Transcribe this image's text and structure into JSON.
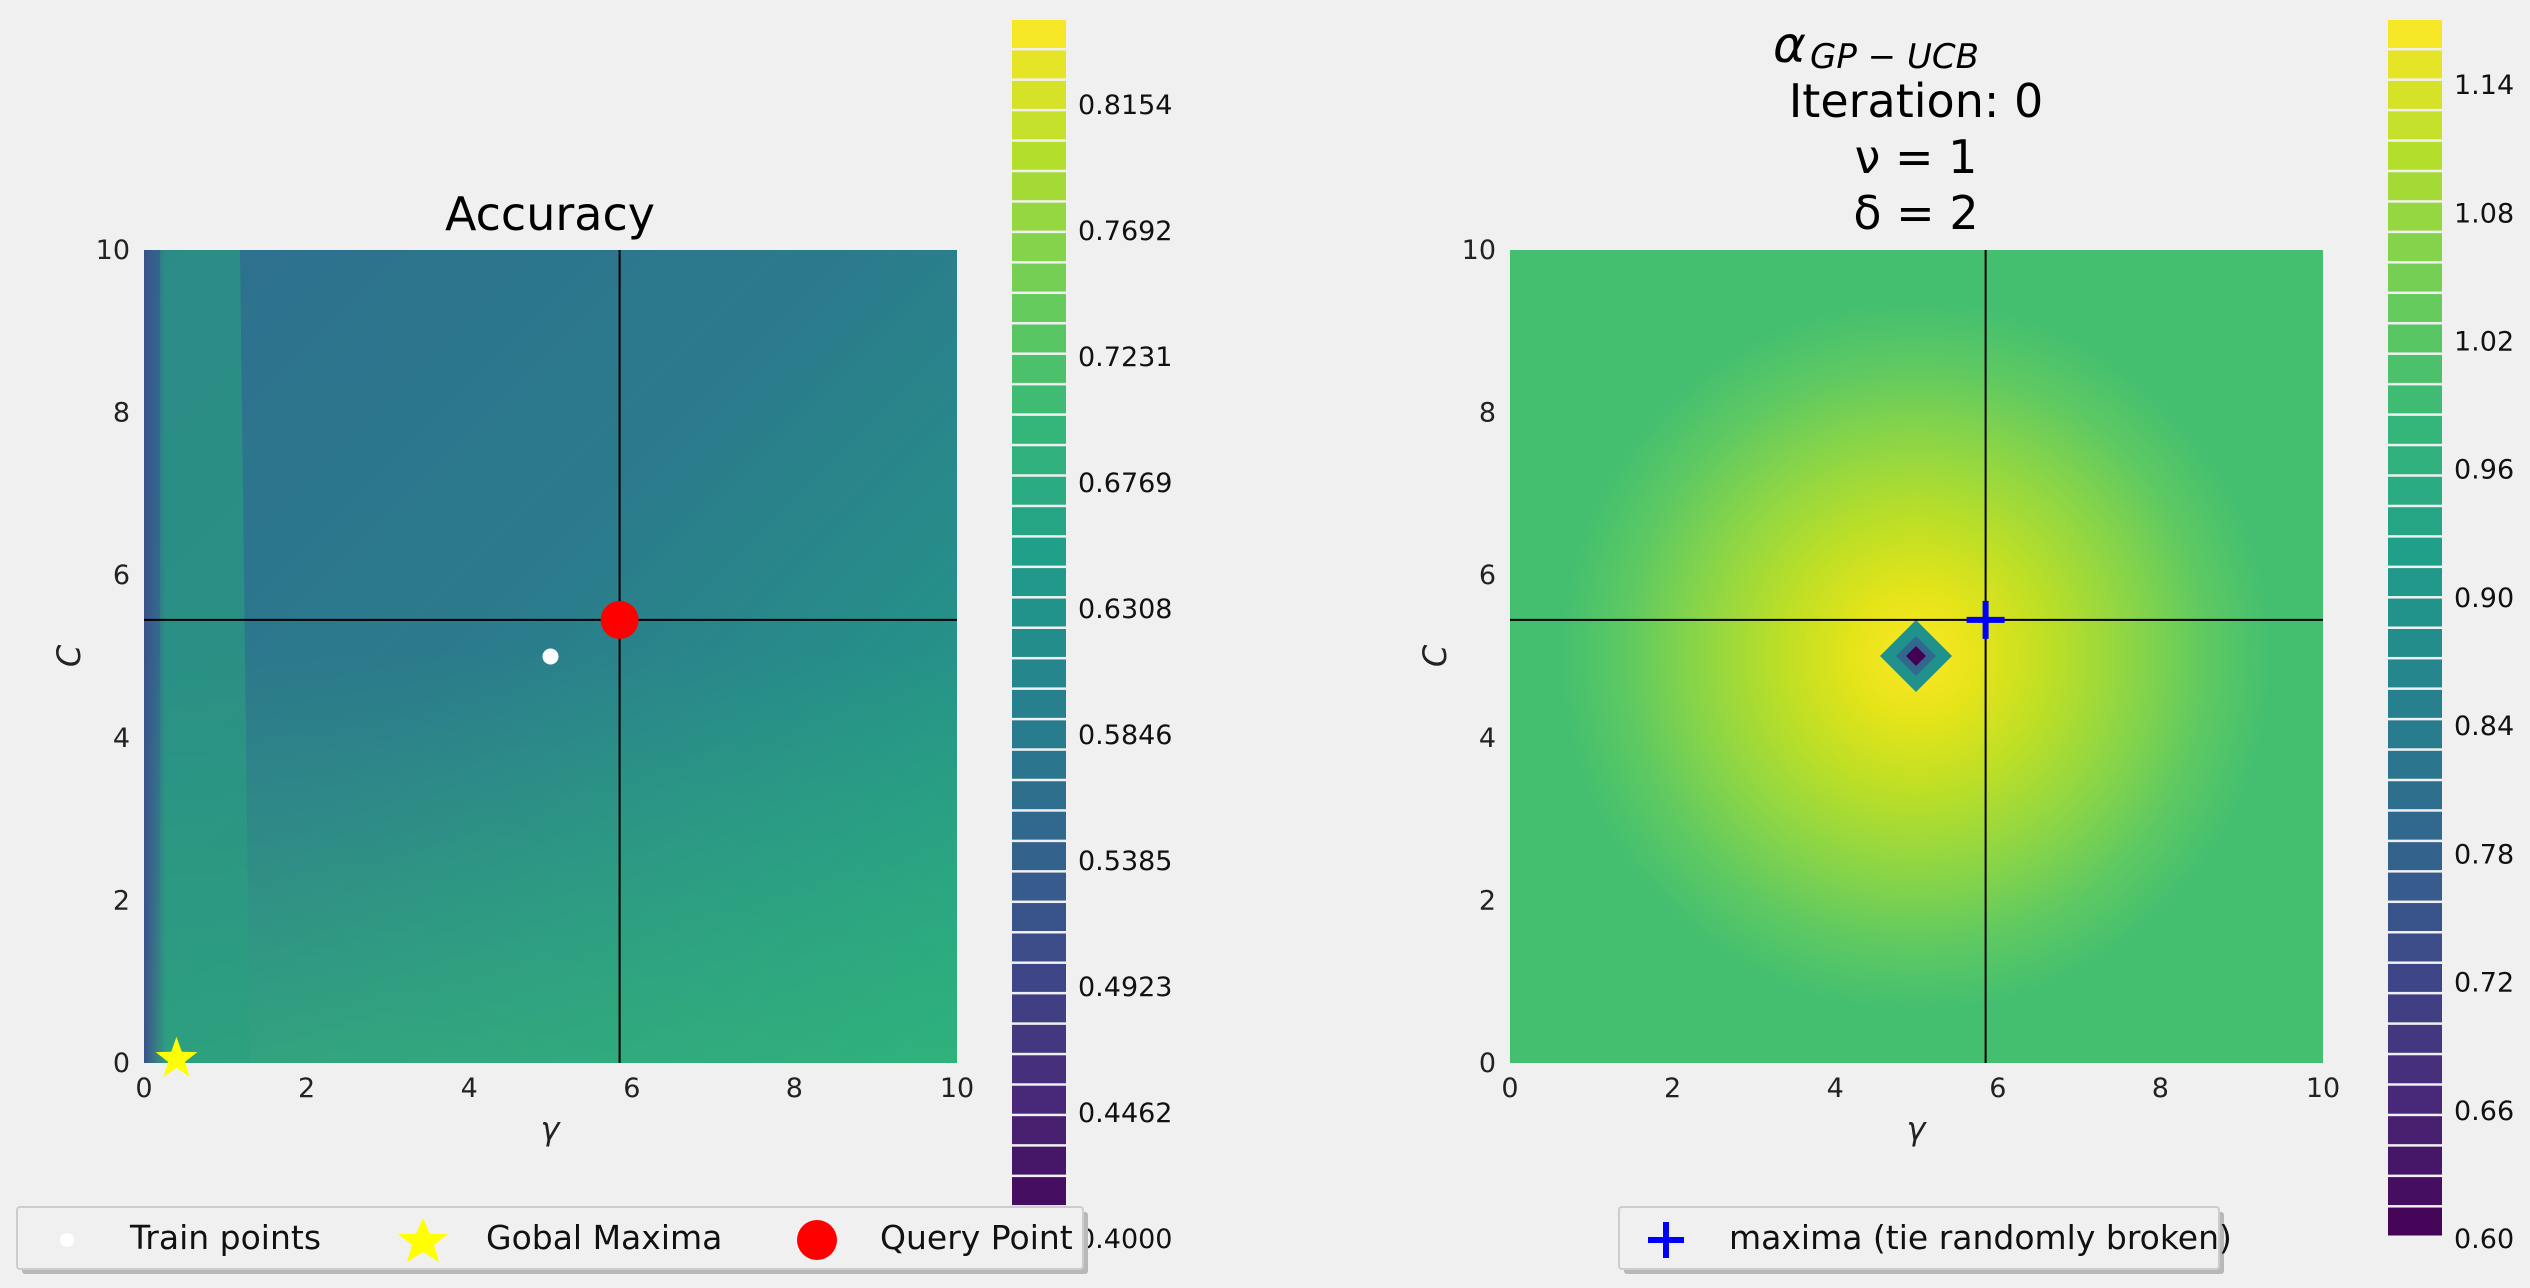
{
  "chart_data": [
    {
      "type": "heatmap",
      "panel": "left",
      "title": "Accuracy",
      "xlabel": "γ",
      "ylabel": "C",
      "xlim": [
        0,
        10
      ],
      "ylim": [
        0,
        10
      ],
      "xticks": [
        "0",
        "2",
        "4",
        "6",
        "8",
        "10"
      ],
      "yticks": [
        "0",
        "2",
        "4",
        "6",
        "8",
        "10"
      ],
      "crosshair": {
        "x": 5.85,
        "y": 5.45
      },
      "train_points": [
        {
          "x": 5.0,
          "y": 5.0
        }
      ],
      "global_maxima": {
        "x": 0.4,
        "y": 0.05
      },
      "query_point": {
        "x": 5.85,
        "y": 5.45
      },
      "colorbar": {
        "min": 0.4,
        "max": 0.8462,
        "ticks": [
          "0.4000",
          "0.4462",
          "0.4923",
          "0.5385",
          "0.5846",
          "0.6308",
          "0.6769",
          "0.7231",
          "0.7692",
          "0.8154"
        ]
      },
      "legend": [
        "Train points",
        "Gobal Maxima",
        "Query Point"
      ],
      "legend_placement": "bottom"
    },
    {
      "type": "heatmap",
      "panel": "right",
      "title_lines": [
        "α",
        "GP − UCB",
        "Iteration: 0",
        "ν = 1",
        "δ = 2"
      ],
      "xlabel": "γ",
      "ylabel": "C",
      "xlim": [
        0,
        10
      ],
      "ylim": [
        0,
        10
      ],
      "xticks": [
        "0",
        "2",
        "4",
        "6",
        "8",
        "10"
      ],
      "yticks": [
        "0",
        "2",
        "4",
        "6",
        "8",
        "10"
      ],
      "crosshair": {
        "x": 5.85,
        "y": 5.45
      },
      "maxima": {
        "x": 5.85,
        "y": 5.45
      },
      "center_point": {
        "x": 5.0,
        "y": 5.0
      },
      "colorbar": {
        "min": 0.6,
        "max": 1.17,
        "ticks": [
          "0.60",
          "0.66",
          "0.72",
          "0.78",
          "0.84",
          "0.90",
          "0.96",
          "1.02",
          "1.08",
          "1.14"
        ]
      },
      "legend": [
        "maxima (tie randomly broken)"
      ],
      "legend_placement": "bottom"
    }
  ],
  "colors": {
    "background": "#f0f0f0",
    "crosshair": "#000000",
    "train_point": "#ffffff",
    "global_maxima": "#ffff00",
    "query_point": "#ff0000",
    "maxima_marker": "#0000ff"
  }
}
